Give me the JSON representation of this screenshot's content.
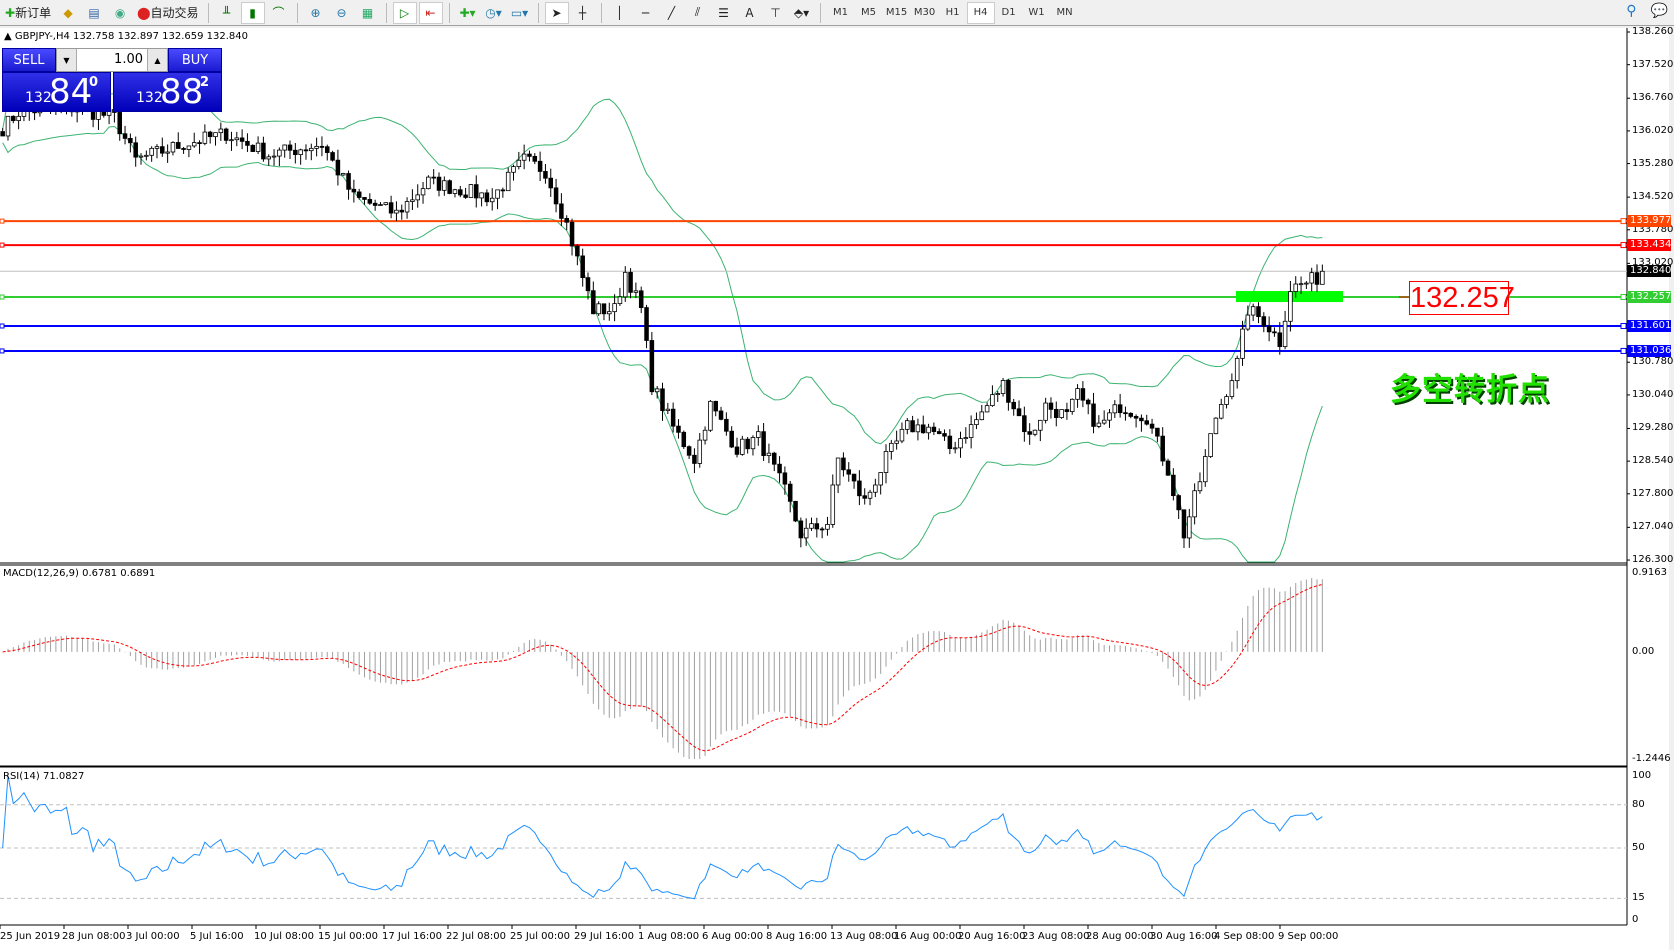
{
  "toolbar": {
    "new_order": "新订单",
    "auto_trade": "自动交易",
    "icons": [
      "new-order-icon",
      "market-watch-icon",
      "navigator-icon",
      "signals-icon",
      "auto-trade-icon",
      "bar-chart-icon",
      "candlestick-icon",
      "line-chart-icon",
      "zoom-in-icon",
      "zoom-out-icon",
      "tile-windows-icon",
      "auto-scroll-icon",
      "chart-shift-icon",
      "indicators-icon",
      "periods-icon",
      "templates-icon",
      "cursor-icon",
      "crosshair-icon",
      "vertical-line-icon",
      "horizontal-line-icon",
      "trendline-icon",
      "equidistant-channel-icon",
      "fibonacci-icon",
      "text-icon",
      "text-label-icon",
      "arrows-icon"
    ],
    "text_tool": "A",
    "timeframes": [
      "M1",
      "M5",
      "M15",
      "M30",
      "H1",
      "H4",
      "D1",
      "W1",
      "MN"
    ],
    "active_timeframe": "H4"
  },
  "chart": {
    "info": "GBPJPY-,H4  132.758 132.897 132.659 132.840",
    "symbol": "GBPJPY-",
    "timeframe": "H4",
    "open": "132.758",
    "high": "132.897",
    "low": "132.659",
    "close": "132.840",
    "price_ticks": [
      "138.260",
      "137.520",
      "136.760",
      "136.020",
      "135.280",
      "134.520",
      "133.780",
      "133.020",
      "130.780",
      "130.040",
      "129.280",
      "128.540",
      "127.800",
      "127.040",
      "126.300"
    ],
    "current_price": "132.840",
    "levels": [
      {
        "value": "133.977",
        "color": "#ff4500"
      },
      {
        "value": "133.434",
        "color": "#ff0000"
      },
      {
        "value": "132.257",
        "color": "#32cd32"
      },
      {
        "value": "131.601",
        "color": "#0000ff"
      },
      {
        "value": "131.036",
        "color": "#0000ff"
      }
    ],
    "callout": "132.257",
    "annotation": "多空转折点",
    "annotation_color": "#22e000",
    "dates": [
      "25 Jun 2019",
      "28 Jun 08:00",
      "3 Jul 00:00",
      "5 Jul 16:00",
      "10 Jul 08:00",
      "15 Jul 00:00",
      "17 Jul 16:00",
      "22 Jul 08:00",
      "25 Jul 00:00",
      "29 Jul 16:00",
      "1 Aug 08:00",
      "6 Aug 00:00",
      "8 Aug 16:00",
      "13 Aug 08:00",
      "16 Aug 00:00",
      "20 Aug 16:00",
      "23 Aug 08:00",
      "28 Aug 00:00",
      "30 Aug 16:00",
      "4 Sep 08:00",
      "9 Sep 00:00"
    ],
    "price_path": [
      [
        0,
        136.08
      ],
      [
        3,
        136.45
      ],
      [
        12,
        136.57
      ],
      [
        21,
        136.33
      ],
      [
        25,
        135.36
      ],
      [
        34,
        135.72
      ],
      [
        42,
        135.96
      ],
      [
        50,
        135.48
      ],
      [
        60,
        135.72
      ],
      [
        66,
        134.51
      ],
      [
        74,
        134.15
      ],
      [
        80,
        134.87
      ],
      [
        92,
        134.51
      ],
      [
        98,
        135.36
      ],
      [
        102,
        135.12
      ],
      [
        106,
        133.91
      ],
      [
        109,
        132.7
      ],
      [
        111,
        131.97
      ],
      [
        115,
        131.97
      ],
      [
        117,
        132.82
      ],
      [
        120,
        131.97
      ],
      [
        122,
        130.28
      ],
      [
        126,
        129.31
      ],
      [
        130,
        128.59
      ],
      [
        133,
        129.8
      ],
      [
        138,
        128.83
      ],
      [
        142,
        129.07
      ],
      [
        147,
        127.86
      ],
      [
        150,
        126.89
      ],
      [
        155,
        127.14
      ],
      [
        157,
        128.59
      ],
      [
        162,
        127.62
      ],
      [
        166,
        128.59
      ],
      [
        170,
        129.31
      ],
      [
        174,
        129.31
      ],
      [
        178,
        128.83
      ],
      [
        182,
        129.31
      ],
      [
        188,
        130.28
      ],
      [
        193,
        129.07
      ],
      [
        196,
        129.8
      ],
      [
        200,
        129.55
      ],
      [
        202,
        130.04
      ],
      [
        206,
        129.31
      ],
      [
        210,
        129.8
      ],
      [
        215,
        129.55
      ],
      [
        219,
        128.35
      ],
      [
        222,
        126.89
      ],
      [
        225,
        128.1
      ],
      [
        228,
        129.55
      ],
      [
        232,
        130.76
      ],
      [
        234,
        131.97
      ],
      [
        237,
        131.73
      ],
      [
        240,
        131.25
      ],
      [
        242,
        132.46
      ],
      [
        245,
        132.58
      ],
      [
        248,
        132.75
      ]
    ],
    "bollinger": "20,2",
    "bull_color": "#ffffff",
    "bear_color": "#000000",
    "band_color": "#3cb371"
  },
  "trade_panel": {
    "sell": "SELL",
    "buy": "BUY",
    "lot": "1.00",
    "sell_small": "132",
    "sell_big": "84",
    "sell_sup": "0",
    "buy_small": "132",
    "buy_big": "88",
    "buy_sup": "2"
  },
  "macd": {
    "label": "MACD(12,26,9) 0.6781 0.6891",
    "ticks": [
      "0.9163",
      "0.00",
      "-1.2446"
    ],
    "max": 0.9163,
    "min": -1.2446,
    "hist_color": "#a0a0a0",
    "signal_color": "#ff0000"
  },
  "rsi": {
    "label": "RSI(14) 71.0827",
    "ticks": [
      "100",
      "80",
      "50",
      "15",
      "0"
    ],
    "line_color": "#1e90ff"
  }
}
